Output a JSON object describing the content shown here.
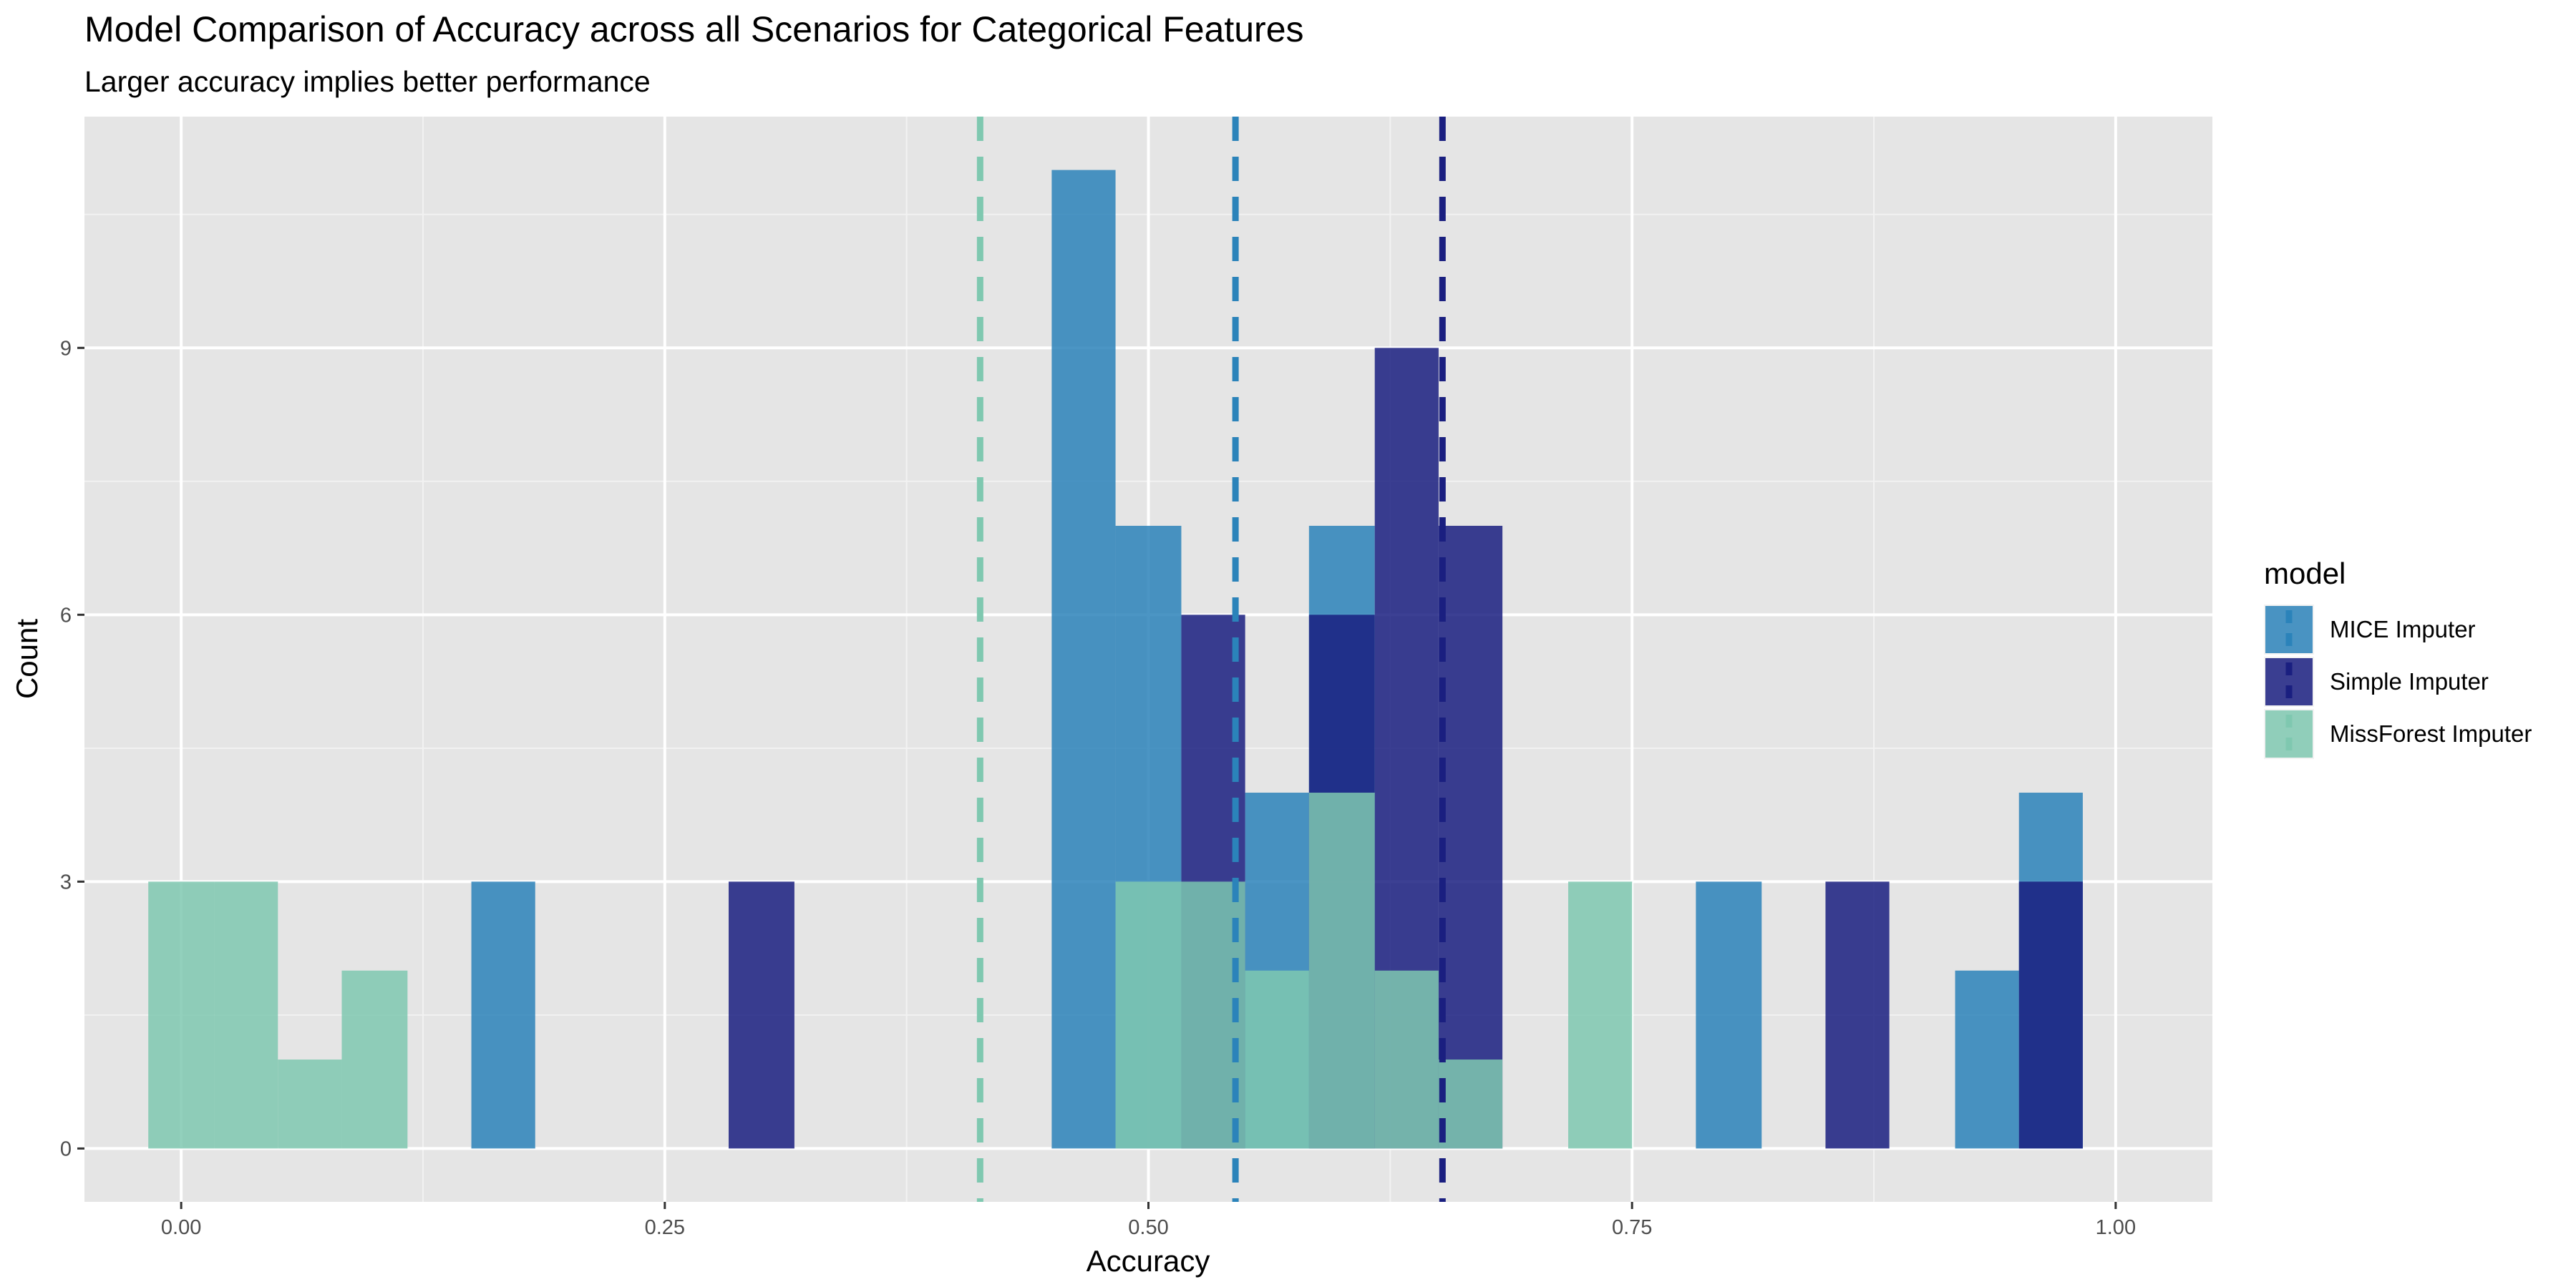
{
  "chart_data": {
    "type": "bar",
    "title": "Model Comparison of Accuracy across all Scenarios for Categorical Features",
    "subtitle": "Larger accuracy implies better performance",
    "xlabel": "Accuracy",
    "ylabel": "Count",
    "xlim": [
      -0.05,
      1.05
    ],
    "ylim": [
      -0.6,
      11.6
    ],
    "x_ticks": [
      0.0,
      0.25,
      0.5,
      0.75,
      1.0
    ],
    "x_tick_labels": [
      "0.00",
      "0.25",
      "0.50",
      "0.75",
      "1.00"
    ],
    "y_ticks": [
      0,
      3,
      6,
      9
    ],
    "y_tick_labels": [
      "0",
      "3",
      "6",
      "9"
    ],
    "grid": true,
    "legend": {
      "title": "model",
      "position": "right"
    },
    "bin_width": 0.0333,
    "series": [
      {
        "name": "MICE Imputer",
        "color": "#2b83ba",
        "mean_line": 0.545,
        "bins": [
          {
            "x0": 0.15,
            "x1": 0.183,
            "count": 3
          },
          {
            "x0": 0.45,
            "x1": 0.483,
            "count": 11
          },
          {
            "x0": 0.483,
            "x1": 0.517,
            "count": 7
          },
          {
            "x0": 0.517,
            "x1": 0.55,
            "count": 3
          },
          {
            "x0": 0.55,
            "x1": 0.583,
            "count": 4
          },
          {
            "x0": 0.583,
            "x1": 0.617,
            "count": 7
          },
          {
            "x0": 0.783,
            "x1": 0.817,
            "count": 3
          },
          {
            "x0": 0.917,
            "x1": 0.95,
            "count": 2
          },
          {
            "x0": 0.95,
            "x1": 0.983,
            "count": 4
          }
        ]
      },
      {
        "name": "Simple Imputer",
        "color": "#1a1f80",
        "mean_line": 0.652,
        "bins": [
          {
            "x0": 0.283,
            "x1": 0.317,
            "count": 3
          },
          {
            "x0": 0.517,
            "x1": 0.55,
            "count": 6
          },
          {
            "x0": 0.583,
            "x1": 0.617,
            "count": 6
          },
          {
            "x0": 0.617,
            "x1": 0.65,
            "count": 9
          },
          {
            "x0": 0.65,
            "x1": 0.683,
            "count": 7
          },
          {
            "x0": 0.85,
            "x1": 0.883,
            "count": 3
          },
          {
            "x0": 0.95,
            "x1": 0.983,
            "count": 3
          }
        ]
      },
      {
        "name": "MissForest Imputer",
        "color": "#7fc8b0",
        "mean_line": 0.413,
        "bins": [
          {
            "x0": -0.017,
            "x1": 0.017,
            "count": 3
          },
          {
            "x0": 0.017,
            "x1": 0.05,
            "count": 3
          },
          {
            "x0": 0.05,
            "x1": 0.083,
            "count": 1
          },
          {
            "x0": 0.083,
            "x1": 0.117,
            "count": 2
          },
          {
            "x0": 0.483,
            "x1": 0.517,
            "count": 3
          },
          {
            "x0": 0.517,
            "x1": 0.55,
            "count": 3
          },
          {
            "x0": 0.55,
            "x1": 0.583,
            "count": 2
          },
          {
            "x0": 0.583,
            "x1": 0.617,
            "count": 4
          },
          {
            "x0": 0.617,
            "x1": 0.65,
            "count": 2
          },
          {
            "x0": 0.65,
            "x1": 0.683,
            "count": 1
          },
          {
            "x0": 0.717,
            "x1": 0.75,
            "count": 3
          }
        ]
      }
    ]
  }
}
